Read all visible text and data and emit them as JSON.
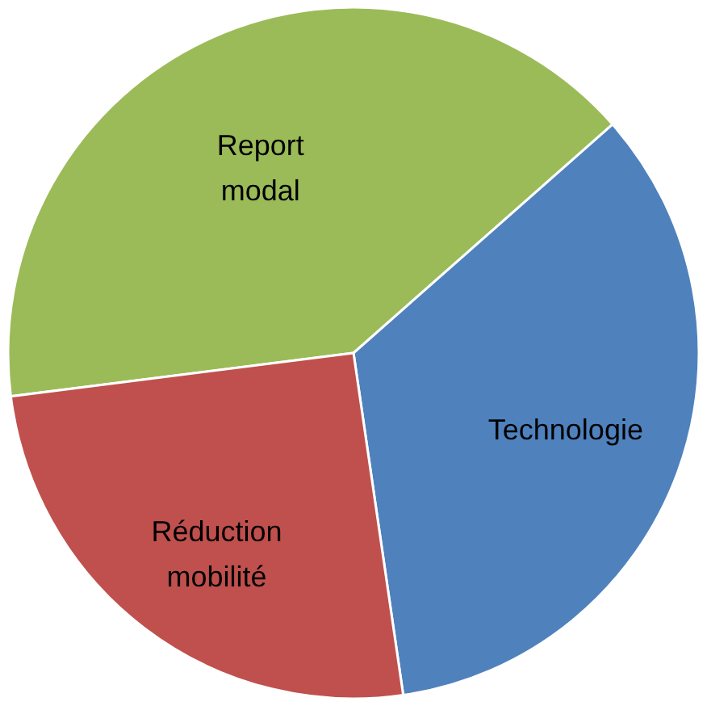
{
  "chart_data": {
    "type": "pie",
    "categories": [
      "Report modal",
      "Technologie",
      "Réduction mobilité"
    ],
    "values": [
      40.5,
      34.2,
      25.3
    ],
    "colors": [
      "#9bbb59",
      "#4f81bd",
      "#c0504d"
    ]
  }
}
